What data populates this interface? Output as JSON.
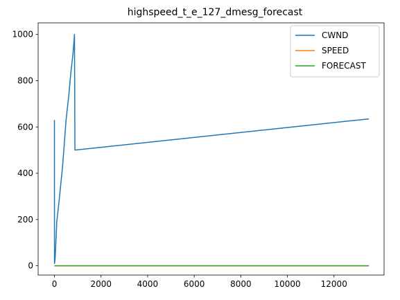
{
  "chart_data": {
    "type": "line",
    "title": "highspeed_t_e_127_dmesg_forecast",
    "xlabel": "",
    "ylabel": "",
    "xlim": [
      -700,
      14150
    ],
    "ylim": [
      -40,
      1050
    ],
    "xticks": [
      0,
      2000,
      4000,
      6000,
      8000,
      10000,
      12000
    ],
    "yticks": [
      0,
      200,
      400,
      600,
      800,
      1000
    ],
    "grid": false,
    "legend": "top-right",
    "series": [
      {
        "name": "CWND",
        "color": "#1f77b4",
        "x": [
          0,
          2,
          30,
          100,
          200,
          350,
          500,
          620,
          700,
          800,
          860,
          880,
          13500
        ],
        "y": [
          630,
          10,
          30,
          190,
          280,
          430,
          630,
          740,
          830,
          920,
          1000,
          500,
          635
        ]
      },
      {
        "name": "SPEED",
        "color": "#ff7f0e",
        "x": [
          0,
          13500
        ],
        "y": [
          0,
          0
        ]
      },
      {
        "name": "FORECAST",
        "color": "#2ca02c",
        "x": [
          0,
          13500
        ],
        "y": [
          0,
          0
        ]
      }
    ]
  }
}
